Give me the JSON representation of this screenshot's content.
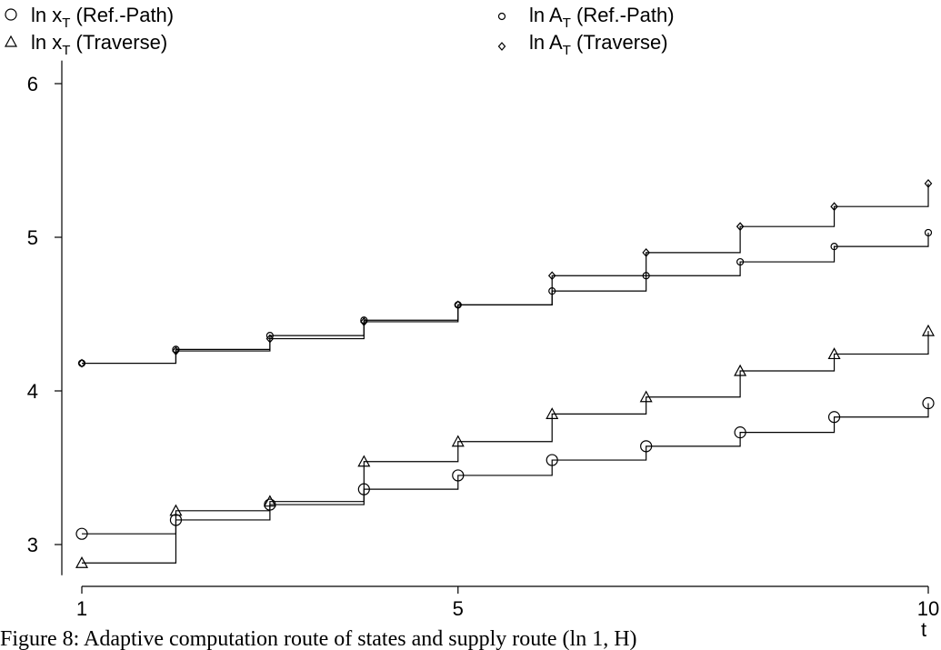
{
  "chart_data": {
    "type": "line",
    "step": true,
    "xlabel": "t",
    "ylabel": "",
    "xlim": [
      1,
      10
    ],
    "ylim": [
      2.8,
      6.15
    ],
    "x_ticks": [
      1,
      5,
      10
    ],
    "y_ticks": [
      3,
      4,
      5,
      6
    ],
    "grid": false,
    "legend_position": "top",
    "x": [
      1,
      2,
      3,
      4,
      5,
      6,
      7,
      8,
      9,
      10
    ],
    "series": [
      {
        "name_main": "ln x",
        "name_sub": "T",
        "name_suffix": " (Ref.-Path)",
        "marker": "circle-large",
        "values": [
          3.07,
          3.16,
          3.26,
          3.36,
          3.45,
          3.55,
          3.64,
          3.73,
          3.83,
          3.92
        ]
      },
      {
        "name_main": "ln x",
        "name_sub": "T",
        "name_suffix": " (Traverse)",
        "marker": "triangle",
        "values": [
          2.88,
          3.22,
          3.28,
          3.54,
          3.67,
          3.85,
          3.96,
          4.13,
          4.24,
          4.39
        ]
      },
      {
        "name_main": "ln A",
        "name_sub": "T",
        "name_suffix": " (Ref.-Path)",
        "marker": "circle-small",
        "values": [
          4.18,
          4.27,
          4.36,
          4.46,
          4.56,
          4.65,
          4.75,
          4.84,
          4.94,
          5.03
        ]
      },
      {
        "name_main": "ln A",
        "name_sub": "T",
        "name_suffix": " (Traverse)",
        "marker": "diamond",
        "values": [
          4.18,
          4.26,
          4.34,
          4.45,
          4.56,
          4.75,
          4.9,
          5.07,
          5.2,
          5.35
        ]
      }
    ]
  },
  "caption": "Figure 8: Adaptive computation route of states and supply route (ln 1, H)"
}
